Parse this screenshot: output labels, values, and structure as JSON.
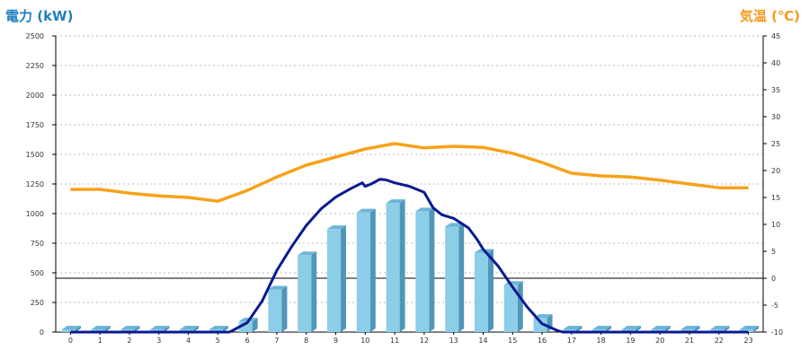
{
  "colors": {
    "power_title": "#1f7fc4",
    "temp_title": "#f39a1b",
    "bar_front": "#8ccde8",
    "bar_side": "#4f97b9",
    "bar_top": "#6db5d6",
    "power_line": "#0a1a91",
    "temp_line": "#f7a21a",
    "grid": "#bbbbbb"
  },
  "chart_data": {
    "type": "bar",
    "title": "",
    "y_left_label": "電力 (kW)",
    "y_right_label": "気温 (℃)",
    "xlabel": "",
    "categories": [
      "0",
      "1",
      "2",
      "3",
      "4",
      "5",
      "6",
      "7",
      "8",
      "9",
      "10",
      "11",
      "12",
      "13",
      "14",
      "15",
      "16",
      "17",
      "18",
      "19",
      "20",
      "21",
      "22",
      "23"
    ],
    "ylim_left": [
      0,
      2500
    ],
    "ylim_right": [
      -10,
      45
    ],
    "y_left_ticks": [
      "0",
      "250",
      "500",
      "750",
      "1000",
      "1250",
      "1500",
      "1750",
      "2000",
      "2250",
      "2500"
    ],
    "y_right_ticks": [
      "-10",
      "-5",
      "0",
      "5",
      "10",
      "15",
      "20",
      "25",
      "30",
      "35",
      "40",
      "45"
    ],
    "grid": true,
    "reference_line": {
      "axis": "right",
      "value": 0
    },
    "series": [
      {
        "type": "bar",
        "axis": "left",
        "values": [
          0,
          0,
          0,
          0,
          0,
          0,
          90,
          360,
          650,
          870,
          1010,
          1090,
          1020,
          890,
          670,
          400,
          120,
          0,
          0,
          0,
          0,
          0,
          0,
          0
        ]
      },
      {
        "type": "line",
        "axis": "left",
        "x": [
          5.4,
          6,
          6.5,
          7,
          7.5,
          8,
          8.5,
          9,
          9.5,
          9.9,
          10,
          10.2,
          10.5,
          10.7,
          11,
          11.5,
          11.8,
          12,
          12.3,
          12.6,
          13,
          13.5,
          13.8,
          14,
          14.5,
          15,
          15.5,
          16,
          16.5,
          16.7,
          17
        ],
        "values": [
          0,
          80,
          260,
          520,
          720,
          900,
          1040,
          1140,
          1210,
          1260,
          1230,
          1250,
          1290,
          1285,
          1260,
          1230,
          1200,
          1180,
          1050,
          990,
          960,
          880,
          780,
          700,
          560,
          380,
          210,
          70,
          15,
          0,
          0
        ]
      },
      {
        "type": "line",
        "axis": "right",
        "x": [
          0,
          1,
          2,
          3,
          4,
          5,
          6,
          7,
          8,
          9,
          10,
          11,
          12,
          13,
          14,
          15,
          16,
          17,
          18,
          19,
          20,
          21,
          22,
          23
        ],
        "values": [
          16.5,
          16.5,
          15.8,
          15.3,
          15.0,
          14.3,
          16.3,
          18.8,
          21.0,
          22.5,
          24.0,
          25.0,
          24.2,
          24.5,
          24.3,
          23.2,
          21.5,
          19.5,
          19.0,
          18.8,
          18.2,
          17.5,
          16.8,
          16.8
        ]
      }
    ]
  }
}
